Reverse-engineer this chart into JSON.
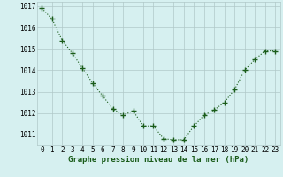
{
  "x": [
    0,
    1,
    2,
    3,
    4,
    5,
    6,
    7,
    8,
    9,
    10,
    11,
    12,
    13,
    14,
    15,
    16,
    17,
    18,
    19,
    20,
    21,
    22,
    23
  ],
  "y": [
    1016.9,
    1016.4,
    1015.4,
    1014.8,
    1014.1,
    1013.4,
    1012.8,
    1012.2,
    1011.9,
    1012.1,
    1011.4,
    1011.4,
    1010.8,
    1010.75,
    1010.75,
    1011.4,
    1011.9,
    1012.15,
    1012.5,
    1013.1,
    1014.0,
    1014.5,
    1014.9,
    1014.9
  ],
  "line_color": "#1a5c1a",
  "marker": "+",
  "bg_color": "#d6f0f0",
  "grid_color": "#b0c8c8",
  "xlabel": "Graphe pression niveau de la mer (hPa)",
  "xlabel_fontsize": 6.5,
  "ylim": [
    1010.5,
    1017.2
  ],
  "yticks": [
    1011,
    1012,
    1013,
    1014,
    1015,
    1016,
    1017
  ],
  "xticks": [
    0,
    1,
    2,
    3,
    4,
    5,
    6,
    7,
    8,
    9,
    10,
    11,
    12,
    13,
    14,
    15,
    16,
    17,
    18,
    19,
    20,
    21,
    22,
    23
  ],
  "tick_fontsize": 5.5,
  "line_width": 0.8,
  "marker_size": 4
}
